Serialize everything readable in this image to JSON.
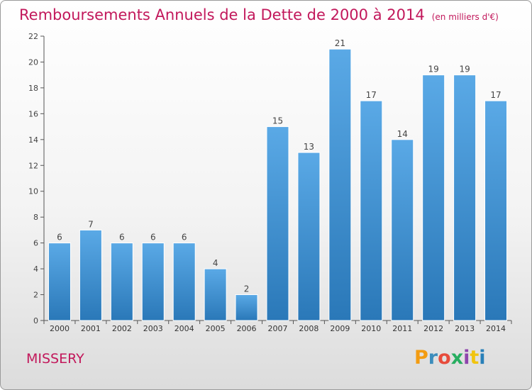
{
  "header": {
    "title": "Remboursements Annuels de la Dette de 2000 à 2014",
    "subtitle": "(en milliers d'€)"
  },
  "footer": {
    "commune": "MISSERY",
    "logo_text": "Proxiti"
  },
  "colors": {
    "title": "#c2185b",
    "bar_top": "#5aa9e6",
    "bar_bottom": "#2a78b8",
    "logo": [
      "#f39c12",
      "#3c8dbc",
      "#e74c3c",
      "#27ae60",
      "#8e44ad",
      "#f1c40f",
      "#2980b9"
    ]
  },
  "chart_data": {
    "type": "bar",
    "categories": [
      "2000",
      "2001",
      "2002",
      "2003",
      "2004",
      "2005",
      "2006",
      "2007",
      "2008",
      "2009",
      "2010",
      "2011",
      "2012",
      "2013",
      "2014"
    ],
    "values": [
      6,
      7,
      6,
      6,
      6,
      4,
      2,
      15,
      13,
      21,
      17,
      14,
      19,
      19,
      17
    ],
    "ylim": [
      0,
      22
    ],
    "yticks": [
      0,
      2,
      4,
      6,
      8,
      10,
      12,
      14,
      16,
      18,
      20,
      22
    ],
    "grid": false,
    "legend": "none"
  }
}
